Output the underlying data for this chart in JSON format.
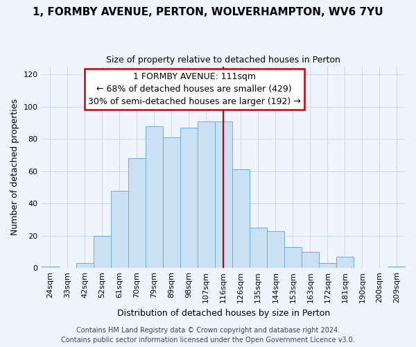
{
  "title": "1, FORMBY AVENUE, PERTON, WOLVERHAMPTON, WV6 7YU",
  "subtitle": "Size of property relative to detached houses in Perton",
  "xlabel": "Distribution of detached houses by size in Perton",
  "ylabel": "Number of detached properties",
  "categories": [
    "24sqm",
    "33sqm",
    "42sqm",
    "52sqm",
    "61sqm",
    "70sqm",
    "79sqm",
    "89sqm",
    "98sqm",
    "107sqm",
    "116sqm",
    "126sqm",
    "135sqm",
    "144sqm",
    "153sqm",
    "163sqm",
    "172sqm",
    "181sqm",
    "190sqm",
    "200sqm",
    "209sqm"
  ],
  "values": [
    1,
    0,
    3,
    20,
    48,
    68,
    88,
    81,
    87,
    91,
    91,
    61,
    25,
    23,
    13,
    10,
    3,
    7,
    0,
    0,
    1
  ],
  "bar_color": "#cce0f5",
  "bar_edge_color": "#6aaed6",
  "property_line_x": 10.0,
  "property_line_color": "#cc0000",
  "annotation_title": "1 FORMBY AVENUE: 111sqm",
  "annotation_line1": "← 68% of detached houses are smaller (429)",
  "annotation_line2": "30% of semi-detached houses are larger (192) →",
  "annotation_box_color": "#ffffff",
  "annotation_box_edge": "#cc0000",
  "ylim": [
    0,
    125
  ],
  "yticks": [
    0,
    20,
    40,
    60,
    80,
    100,
    120
  ],
  "footer_line1": "Contains HM Land Registry data © Crown copyright and database right 2024.",
  "footer_line2": "Contains public sector information licensed under the Open Government Licence v3.0.",
  "grid_color": "#d0d8e8",
  "background_color": "#f0f4ff",
  "title_fontsize": 11,
  "subtitle_fontsize": 9,
  "ylabel_fontsize": 9,
  "xlabel_fontsize": 9,
  "tick_fontsize": 8,
  "annotation_fontsize": 9,
  "footer_fontsize": 7
}
